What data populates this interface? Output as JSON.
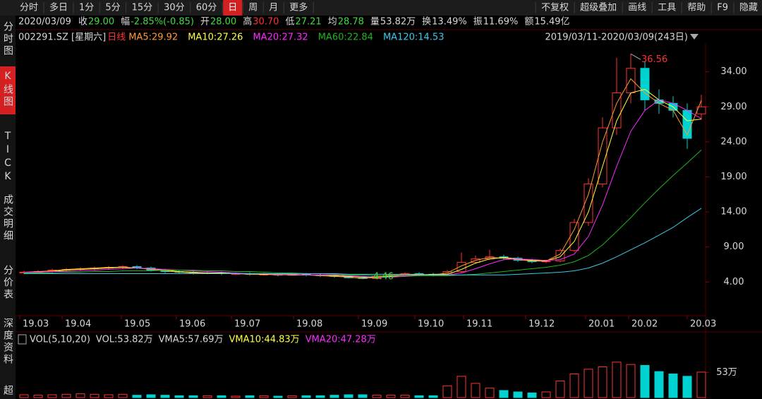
{
  "toolbar": {
    "tabs": [
      "分时",
      "多日",
      "1分",
      "5分",
      "15分",
      "30分",
      "60分",
      "日",
      "周",
      "月",
      "更多"
    ],
    "active_index": 7,
    "tools": [
      "不复权",
      "超级叠加",
      "画线",
      "工具",
      "帮助",
      "F9",
      "隐藏"
    ]
  },
  "sidebar": {
    "items": [
      "分时图",
      "K线图",
      "TICK",
      "成交明细",
      "分价表",
      "深度资料",
      "超"
    ],
    "active_index": 1
  },
  "quote": [
    {
      "label": "2020/03/09"
    },
    {
      "label": "收",
      "value": "29.00",
      "color": "#3fdc3f"
    },
    {
      "label": "幅",
      "value": "-2.85%(-0.85)",
      "color": "#3fdc3f"
    },
    {
      "label": "开",
      "value": "28.00",
      "color": "#3fdc3f"
    },
    {
      "label": "高",
      "value": "30.70",
      "color": "#ff3232"
    },
    {
      "label": "低",
      "value": "27.21",
      "color": "#3fdc3f"
    },
    {
      "label": "均",
      "value": "28.78",
      "color": "#3fdc3f"
    },
    {
      "label": "量",
      "value": "53.82万",
      "color": "#d8d8d8"
    },
    {
      "label": "换",
      "value": "13.49%",
      "color": "#d8d8d8"
    },
    {
      "label": "振",
      "value": "11.69%",
      "color": "#d8d8d8"
    },
    {
      "label": "额",
      "value": "15.49亿",
      "color": "#d8d8d8"
    }
  ],
  "chart_data": [
    {
      "type": "candlestick",
      "title": "002291.SZ [星期六]",
      "period": "日线",
      "range_label": "2019/03/11-2020/03/09(243日)",
      "up_color": "#ff3232",
      "down_color": "#00d2d2",
      "open": [
        5.3,
        5.4,
        5.5,
        5.7,
        5.8,
        5.9,
        6.0,
        6.1,
        6.2,
        6.0,
        5.7,
        5.5,
        5.4,
        5.3,
        5.3,
        5.2,
        5.2,
        5.1,
        5.1,
        5.0,
        5.1,
        5.0,
        4.9,
        4.8,
        4.6,
        4.5,
        4.8,
        5.0,
        5.2,
        5.1,
        5.0,
        5.5,
        6.8,
        7.3,
        7.6,
        7.4,
        7.1,
        6.9,
        7.0,
        8.5,
        12.5,
        18.0,
        26.0,
        31.0,
        34.5,
        30.0,
        29.5,
        28.5,
        28.0
      ],
      "high": [
        5.6,
        5.7,
        5.9,
        6.0,
        6.1,
        6.2,
        6.3,
        6.4,
        6.4,
        6.2,
        5.9,
        5.7,
        5.6,
        5.5,
        5.5,
        5.4,
        5.4,
        5.3,
        5.3,
        5.3,
        5.3,
        5.2,
        5.1,
        5.0,
        4.8,
        5.0,
        5.2,
        5.4,
        5.4,
        5.3,
        5.7,
        8.2,
        7.8,
        8.6,
        7.9,
        7.6,
        7.3,
        7.2,
        8.8,
        13.0,
        18.8,
        27.5,
        36.0,
        36.56,
        35.5,
        31.5,
        30.5,
        29.5,
        30.7
      ],
      "low": [
        5.1,
        5.2,
        5.3,
        5.5,
        5.6,
        5.7,
        5.8,
        5.9,
        5.8,
        5.5,
        5.3,
        5.2,
        5.1,
        5.1,
        5.0,
        5.0,
        4.9,
        4.9,
        4.8,
        4.9,
        4.8,
        4.7,
        4.6,
        4.5,
        4.46,
        4.5,
        4.7,
        4.9,
        4.9,
        4.8,
        4.9,
        5.3,
        6.6,
        7.1,
        7.1,
        6.9,
        6.7,
        6.7,
        6.8,
        8.3,
        12.0,
        17.5,
        25.0,
        29.5,
        28.5,
        28.0,
        27.5,
        23.0,
        27.21
      ],
      "close": [
        5.4,
        5.5,
        5.7,
        5.8,
        5.9,
        6.0,
        6.1,
        6.2,
        6.0,
        5.7,
        5.5,
        5.4,
        5.3,
        5.3,
        5.2,
        5.2,
        5.1,
        5.1,
        5.0,
        5.1,
        5.0,
        4.9,
        4.8,
        4.6,
        4.5,
        4.8,
        5.0,
        5.2,
        5.1,
        5.0,
        5.5,
        6.8,
        7.3,
        7.6,
        7.4,
        7.1,
        6.9,
        7.0,
        8.5,
        12.5,
        18.0,
        26.0,
        31.0,
        34.5,
        30.0,
        29.5,
        28.5,
        24.5,
        29.0
      ],
      "series": [
        {
          "name": "MA5:29.92",
          "color": "#ff9a2e",
          "values": [
            5.4,
            5.5,
            5.6,
            5.8,
            5.9,
            6.0,
            6.1,
            6.1,
            6.0,
            5.8,
            5.6,
            5.4,
            5.3,
            5.3,
            5.2,
            5.2,
            5.1,
            5.1,
            5.0,
            5.1,
            5.0,
            4.9,
            4.8,
            4.7,
            4.5,
            4.7,
            4.9,
            5.1,
            5.1,
            5.0,
            5.3,
            6.3,
            7.1,
            7.5,
            7.4,
            7.2,
            7.0,
            7.0,
            8.0,
            11.5,
            16.5,
            24.0,
            29.5,
            33.0,
            31.0,
            29.5,
            28.5,
            25.0,
            29.92
          ]
        },
        {
          "name": "MA10:27.26",
          "color": "#ffff3c",
          "values": [
            5.4,
            5.4,
            5.5,
            5.7,
            5.8,
            5.9,
            6.0,
            6.1,
            6.0,
            5.9,
            5.7,
            5.5,
            5.4,
            5.3,
            5.3,
            5.2,
            5.2,
            5.1,
            5.1,
            5.0,
            5.0,
            5.0,
            4.9,
            4.8,
            4.7,
            4.6,
            4.8,
            4.9,
            5.0,
            5.1,
            5.1,
            5.8,
            6.7,
            7.3,
            7.5,
            7.3,
            7.1,
            7.0,
            7.6,
            9.8,
            14.0,
            20.5,
            27.0,
            31.0,
            31.5,
            30.0,
            29.0,
            27.0,
            27.26
          ]
        },
        {
          "name": "MA20:27.32",
          "color": "#ff28ff",
          "values": [
            5.4,
            5.4,
            5.5,
            5.5,
            5.6,
            5.7,
            5.8,
            5.9,
            6.0,
            5.9,
            5.8,
            5.7,
            5.6,
            5.5,
            5.4,
            5.3,
            5.2,
            5.2,
            5.1,
            5.1,
            5.0,
            5.0,
            5.0,
            4.9,
            4.8,
            4.7,
            4.7,
            4.8,
            4.9,
            5.0,
            5.0,
            5.3,
            5.9,
            6.6,
            7.2,
            7.3,
            7.2,
            7.1,
            7.2,
            8.0,
            10.5,
            15.0,
            20.5,
            25.5,
            28.5,
            30.0,
            29.5,
            28.5,
            27.32
          ]
        },
        {
          "name": "MA60:22.84",
          "color": "#1eb41e",
          "values": [
            5.3,
            5.3,
            5.3,
            5.4,
            5.4,
            5.5,
            5.5,
            5.6,
            5.6,
            5.6,
            5.7,
            5.7,
            5.7,
            5.6,
            5.6,
            5.5,
            5.5,
            5.4,
            5.3,
            5.3,
            5.2,
            5.2,
            5.1,
            5.0,
            5.0,
            4.9,
            4.9,
            4.9,
            4.9,
            4.9,
            4.9,
            5.0,
            5.1,
            5.3,
            5.5,
            5.7,
            5.9,
            6.1,
            6.4,
            6.9,
            7.8,
            9.3,
            11.2,
            13.2,
            15.3,
            17.3,
            19.2,
            21.0,
            22.84
          ]
        },
        {
          "name": "MA120:14.53",
          "color": "#3cc8e6",
          "values": [
            5.2,
            5.2,
            5.2,
            5.2,
            5.2,
            5.2,
            5.2,
            5.2,
            5.2,
            5.2,
            5.2,
            5.2,
            5.2,
            5.2,
            5.2,
            5.2,
            5.2,
            5.2,
            5.2,
            5.2,
            5.2,
            5.2,
            5.2,
            5.1,
            5.1,
            5.1,
            5.1,
            5.1,
            5.0,
            5.0,
            5.0,
            5.0,
            5.0,
            5.0,
            5.0,
            5.1,
            5.2,
            5.3,
            5.4,
            5.6,
            6.0,
            6.7,
            7.6,
            8.6,
            9.6,
            10.7,
            11.8,
            13.2,
            14.53
          ]
        }
      ],
      "annotations": [
        {
          "label": "36.56",
          "at": "high",
          "color": "#ff3232"
        },
        {
          "label": "4.46",
          "at": "low",
          "color": "#3fdc3f"
        }
      ],
      "xlim": [
        0,
        49
      ],
      "xticks": [
        {
          "value": 0.2,
          "label": "19.03"
        },
        {
          "value": 3.2,
          "label": "19.04"
        },
        {
          "value": 7.4,
          "label": "19.05"
        },
        {
          "value": 11.3,
          "label": "19.06"
        },
        {
          "value": 15.2,
          "label": "19.07"
        },
        {
          "value": 19.6,
          "label": "19.08"
        },
        {
          "value": 24.2,
          "label": "19.09"
        },
        {
          "value": 28.2,
          "label": "19.10"
        },
        {
          "value": 31.65,
          "label": "19.11"
        },
        {
          "value": 36.05,
          "label": "19.12"
        },
        {
          "value": 40.3,
          "label": "20.01"
        },
        {
          "value": 43.35,
          "label": "20.02"
        },
        {
          "value": 47.5,
          "label": "20.03"
        }
      ],
      "ylim": [
        -0.6,
        38.0
      ],
      "yticks": [
        {
          "value": 4,
          "label": "4.00"
        },
        {
          "value": 9,
          "label": "9.00"
        },
        {
          "value": 14,
          "label": "14.00"
        },
        {
          "value": 19,
          "label": "19.00"
        },
        {
          "value": 24,
          "label": "24.00"
        },
        {
          "value": 29,
          "label": "29.00"
        },
        {
          "value": 34,
          "label": "34.00"
        }
      ]
    },
    {
      "type": "bar",
      "header": [
        {
          "text": "VOL(5,10,20)",
          "color": "#d8d8d8"
        },
        {
          "text": "VOL:53.82万",
          "color": "#d8d8d8"
        },
        {
          "text": "VMA5:57.69万",
          "color": "#d8d8d8"
        },
        {
          "text": "VMA10:44.83万",
          "color": "#ffff3c"
        },
        {
          "text": "VMA20:47.28万",
          "color": "#ff28ff"
        }
      ],
      "values": [
        6,
        5,
        6,
        7,
        8,
        7,
        6,
        7,
        5,
        6,
        5,
        4,
        4,
        4,
        4,
        3,
        4,
        4,
        3,
        4,
        4,
        4,
        5,
        6,
        6,
        5,
        5,
        5,
        4,
        4,
        25,
        45,
        30,
        20,
        15,
        12,
        10,
        12,
        35,
        50,
        60,
        65,
        75,
        70,
        68,
        55,
        50,
        45,
        53.82
      ],
      "ylim": [
        0,
        106
      ],
      "yticks": [
        {
          "value": 53,
          "label": "53万"
        }
      ]
    }
  ]
}
